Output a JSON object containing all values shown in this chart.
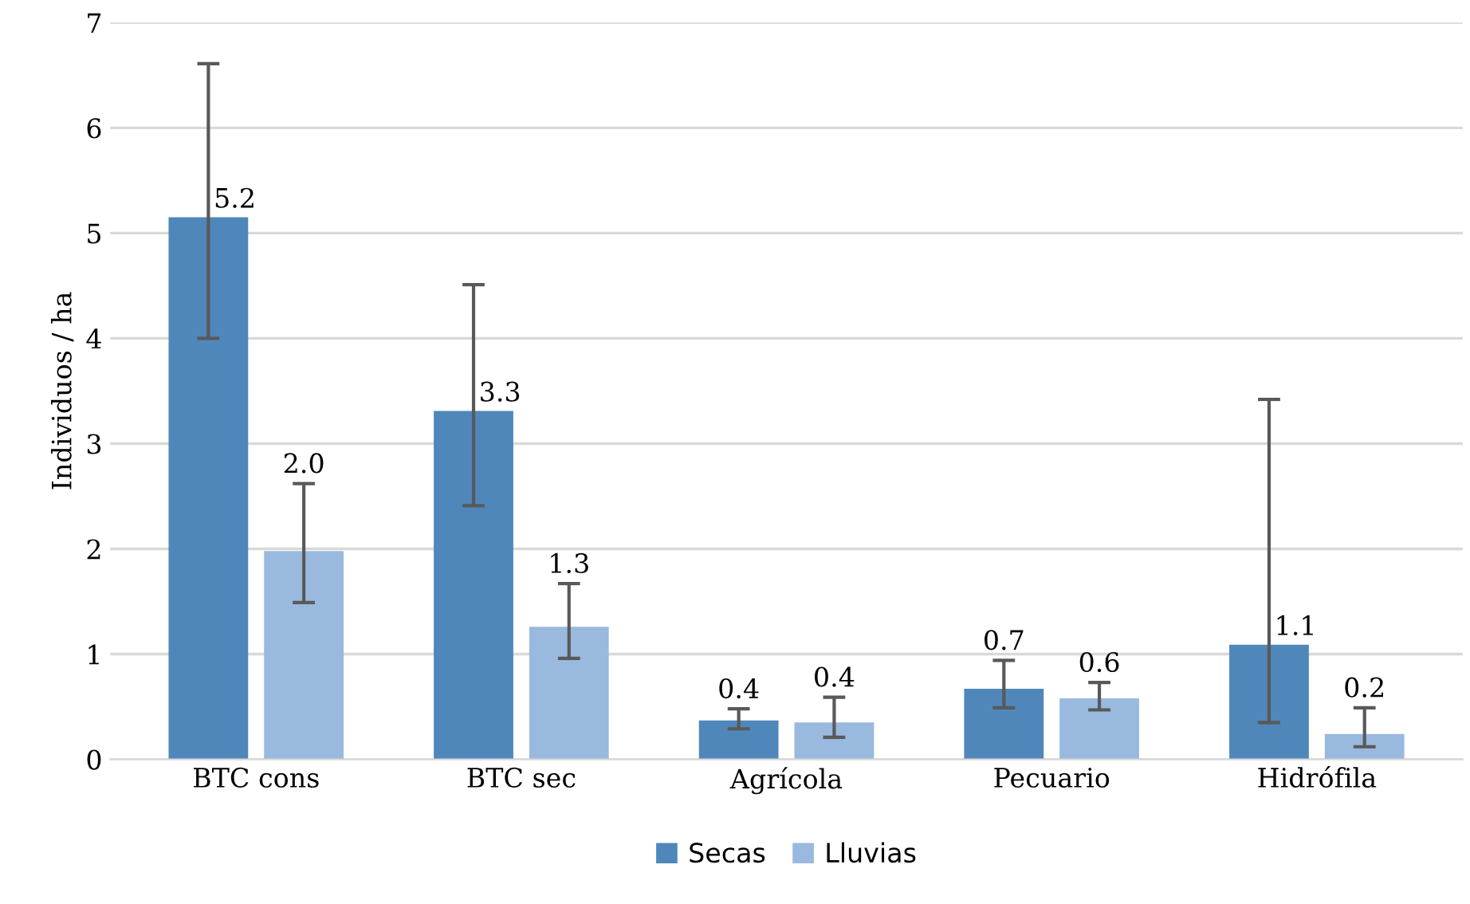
{
  "chart_data": {
    "type": "bar",
    "ylabel": "Individuos / ha",
    "categories": [
      "BTC cons",
      "BTC sec",
      "Agrícola",
      "Pecuario",
      "Hidrófila"
    ],
    "series": [
      {
        "name": "Secas",
        "color": "#4f87ba",
        "values": [
          5.15,
          3.31,
          0.37,
          0.67,
          1.09
        ],
        "errors": [
          [
            4.0,
            6.61
          ],
          [
            2.41,
            4.51
          ],
          [
            0.29,
            0.48
          ],
          [
            0.49,
            0.94
          ],
          [
            0.35,
            3.42
          ]
        ],
        "value_labels": [
          "5.2",
          "3.3",
          "0.4",
          "0.7",
          "1.1"
        ]
      },
      {
        "name": "Lluvias",
        "color": "#99b9de",
        "values": [
          1.98,
          1.26,
          0.35,
          0.58,
          0.24
        ],
        "errors": [
          [
            1.49,
            2.62
          ],
          [
            0.96,
            1.67
          ],
          [
            0.21,
            0.59
          ],
          [
            0.47,
            0.73
          ],
          [
            0.12,
            0.49
          ]
        ],
        "value_labels": [
          "2.0",
          "1.3",
          "0.4",
          "0.6",
          "0.2"
        ]
      }
    ],
    "ylim": [
      0,
      7
    ],
    "yticks": [
      0,
      1,
      2,
      3,
      4,
      5,
      6,
      7
    ],
    "grid": "y",
    "legend": "bottom"
  }
}
